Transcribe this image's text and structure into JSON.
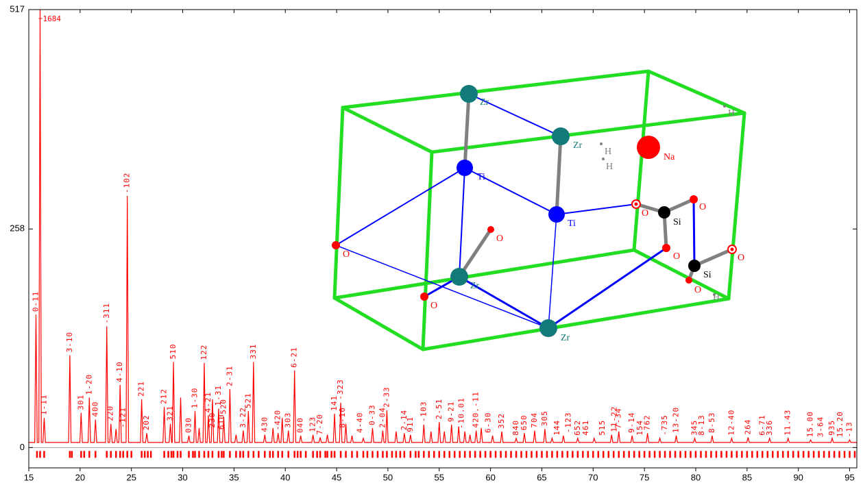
{
  "chart_data": {
    "type": "line",
    "color": "#ff0000",
    "xlim": [
      15,
      95.7
    ],
    "ylim": [
      -24,
      517
    ],
    "xticks": [
      15,
      20,
      25,
      30,
      35,
      40,
      45,
      50,
      55,
      60,
      65,
      70,
      75,
      80,
      85,
      90,
      95
    ],
    "yticks": [
      0,
      258,
      517
    ],
    "zero_line": true,
    "x": [
      15,
      15.58,
      15.7,
      15.82,
      15.98,
      16.1,
      16.22,
      16.38,
      16.5,
      16.62,
      18.88,
      19,
      19.12,
      19.98,
      20.1,
      20.22,
      20.78,
      20.9,
      21.02,
      21.38,
      21.5,
      21.62,
      22.48,
      22.6,
      22.72,
      22.88,
      23,
      23.12,
      23.38,
      23.5,
      23.62,
      23.78,
      23.9,
      24.02,
      24.48,
      24.6,
      24.72,
      25.88,
      26,
      26.12,
      26.38,
      26.5,
      26.62,
      28.08,
      28.2,
      28.32,
      28.68,
      28.8,
      28.92,
      28.98,
      29.1,
      29.22,
      29.68,
      29.8,
      29.92,
      30.48,
      30.6,
      30.72,
      31.08,
      31.2,
      31.32,
      31.48,
      31.6,
      31.72,
      31.98,
      32.1,
      32.22,
      32.38,
      32.5,
      32.62,
      32.78,
      32.9,
      33.02,
      33.38,
      33.5,
      33.62,
      33.88,
      34,
      34.12,
      34.48,
      34.6,
      34.72,
      35.08,
      35.2,
      35.32,
      35.78,
      35.9,
      36.02,
      36.28,
      36.4,
      36.52,
      36.78,
      36.9,
      37.02,
      37.88,
      38,
      38.12,
      38.68,
      38.8,
      38.92,
      39.18,
      39.3,
      39.42,
      39.58,
      39.7,
      39.82,
      40.18,
      40.3,
      40.42,
      40.78,
      40.9,
      41.02,
      41.38,
      41.5,
      41.62,
      42.58,
      42.7,
      42.82,
      43.28,
      43.4,
      43.52,
      43.98,
      44.1,
      44.22,
      44.68,
      44.8,
      44.92,
      45.28,
      45.4,
      45.52,
      45.78,
      45.9,
      46.02,
      46.38,
      46.5,
      46.62,
      47.48,
      47.6,
      47.72,
      48.38,
      48.5,
      48.62,
      49.38,
      49.5,
      49.62,
      49.78,
      49.9,
      50.02,
      50.68,
      50.8,
      50.92,
      51.48,
      51.6,
      51.72,
      52.08,
      52.2,
      52.32,
      53.38,
      53.5,
      53.62,
      54.08,
      54.2,
      54.32,
      54.88,
      55,
      55.12,
      55.38,
      55.5,
      55.62,
      56.08,
      56.2,
      56.32,
      56.78,
      56.9,
      57.02,
      57.38,
      57.5,
      57.62,
      57.88,
      58,
      58.12,
      58.48,
      58.6,
      58.72,
      58.98,
      59.1,
      59.22,
      60.08,
      60.2,
      60.32,
      60.98,
      61.1,
      61.22,
      62.38,
      62.5,
      62.62,
      63.18,
      63.3,
      63.42,
      64.18,
      64.3,
      64.42,
      65.18,
      65.3,
      65.42,
      65.88,
      66,
      66.12,
      66.98,
      67.1,
      67.22,
      68.38,
      68.5,
      68.62,
      69.98,
      70.1,
      70.22,
      71.68,
      71.8,
      71.92,
      72.38,
      72.5,
      72.62,
      73.68,
      73.8,
      73.92,
      75.18,
      75.3,
      75.42,
      76.38,
      76.5,
      76.62,
      77.98,
      78.1,
      78.22,
      79.78,
      79.9,
      80.02,
      81.48,
      81.6,
      81.72,
      83.38,
      83.5,
      83.62,
      84.98,
      85.1,
      85.22,
      87.08,
      87.2,
      87.32,
      88.88,
      89,
      89.12,
      91.08,
      91.2,
      91.32,
      93.18,
      93.3,
      93.42,
      94.88,
      95,
      95.12,
      95.7
    ],
    "values": [
      6,
      6,
      157,
      6,
      6,
      517,
      6,
      6,
      35,
      6,
      6,
      109,
      6,
      6,
      41,
      6,
      6,
      59,
      6,
      6,
      33,
      6,
      6,
      143,
      6,
      6,
      28,
      6,
      6,
      22,
      6,
      6,
      74,
      6,
      6,
      297,
      6,
      6,
      57,
      6,
      6,
      17,
      6,
      6,
      48,
      6,
      6,
      28,
      6,
      6,
      101,
      6,
      6,
      59,
      6,
      6,
      14,
      6,
      6,
      43,
      6,
      6,
      23,
      6,
      6,
      100,
      6,
      6,
      38,
      6,
      6,
      57,
      6,
      6,
      46,
      6,
      6,
      36,
      6,
      6,
      69,
      6,
      6,
      15,
      6,
      6,
      20,
      6,
      6,
      43,
      6,
      6,
      101,
      6,
      6,
      15,
      6,
      6,
      23,
      6,
      6,
      17,
      6,
      6,
      35,
      6,
      6,
      20,
      6,
      6,
      91,
      6,
      6,
      14,
      6,
      6,
      15,
      6,
      6,
      12,
      6,
      6,
      15,
      6,
      6,
      40,
      6,
      6,
      53,
      6,
      6,
      28,
      6,
      6,
      14,
      6,
      6,
      11,
      6,
      6,
      23,
      6,
      6,
      20,
      6,
      6,
      44,
      6,
      6,
      19,
      6,
      6,
      17,
      6,
      6,
      15,
      6,
      6,
      27,
      6,
      6,
      19,
      6,
      6,
      30,
      6,
      6,
      19,
      6,
      6,
      27,
      6,
      6,
      25,
      6,
      6,
      19,
      6,
      6,
      15,
      6,
      6,
      20,
      6,
      6,
      23,
      6,
      6,
      14,
      6,
      6,
      19,
      6,
      6,
      11,
      6,
      6,
      17,
      6,
      6,
      20,
      6,
      6,
      22,
      6,
      6,
      11,
      6,
      6,
      14,
      6,
      6,
      11,
      6,
      6,
      11,
      6,
      6,
      15,
      6,
      6,
      19,
      6,
      6,
      14,
      6,
      6,
      17,
      6,
      6,
      11,
      6,
      6,
      14,
      6,
      6,
      11,
      6,
      6,
      14,
      6,
      6,
      11,
      6,
      6,
      12,
      6,
      6,
      11,
      6,
      6,
      11,
      6,
      6,
      9,
      6,
      6,
      11,
      6,
      6,
      9,
      6,
      6
    ],
    "reflections": [
      15.8,
      16.1,
      16.5,
      19.0,
      19.2,
      20.1,
      20.4,
      20.9,
      21.5,
      22.6,
      23.0,
      23.5,
      23.9,
      24.2,
      24.6,
      25.0,
      26.0,
      26.3,
      26.6,
      26.9,
      28.2,
      28.6,
      28.9,
      29.1,
      29.5,
      29.8,
      30.6,
      31.0,
      31.2,
      31.6,
      32.1,
      32.5,
      32.9,
      33.5,
      33.8,
      34.0,
      34.6,
      35.2,
      35.6,
      35.9,
      36.4,
      36.9,
      37.4,
      38.0,
      38.5,
      38.8,
      39.3,
      39.7,
      40.3,
      40.9,
      41.2,
      41.5,
      42.0,
      42.7,
      43.1,
      43.4,
      43.9,
      44.1,
      44.5,
      44.8,
      45.4,
      45.9,
      46.5,
      47.0,
      47.6,
      48.0,
      48.5,
      49.0,
      49.5,
      49.9,
      50.4,
      50.8,
      51.2,
      51.6,
      52.2,
      52.7,
      53,
      53.5,
      54,
      54.5,
      55,
      55.5,
      56,
      56.5,
      57,
      57.5,
      58,
      58.5,
      59,
      59.5,
      60,
      60.5,
      61,
      61.5,
      62,
      62.5,
      63,
      63.5,
      64,
      64.5,
      65,
      65.5,
      66,
      66.5,
      67,
      67.5,
      68,
      68.5,
      69,
      69.5,
      70,
      70.5,
      71,
      71.5,
      72,
      72.5,
      73,
      73.5,
      74,
      74.5,
      75,
      75.5,
      76,
      76.5,
      77,
      77.5,
      78,
      78.5,
      79,
      79.5,
      80,
      80.5,
      81,
      81.5,
      82,
      82.5,
      83,
      83.5,
      84,
      84.5,
      85,
      85.5,
      86,
      86.5,
      87,
      87.5,
      88,
      88.5,
      89,
      89.5,
      90,
      90.5,
      91,
      91.5,
      92,
      92.5,
      93,
      93.5,
      94,
      94.5,
      95,
      95.5
    ],
    "top_label": {
      "text": "1684",
      "x": 16.1,
      "y": 517
    },
    "annotations": [
      {
        "text": "0-11",
        "x": 15.7,
        "y": 157
      },
      {
        "text": "1-11",
        "x": 16.5,
        "y": 35
      },
      {
        "text": "3-10",
        "x": 19.0,
        "y": 109
      },
      {
        "text": "301",
        "x": 20.1,
        "y": 41
      },
      {
        "text": "1-20",
        "x": 20.9,
        "y": 59
      },
      {
        "text": "400",
        "x": 21.5,
        "y": 33
      },
      {
        "text": "-311",
        "x": 22.6,
        "y": 143
      },
      {
        "text": "220",
        "x": 23.0,
        "y": 28
      },
      {
        "text": "4-10",
        "x": 23.9,
        "y": 74
      },
      {
        "text": "-121",
        "x": 24.2,
        "y": 20
      },
      {
        "text": "-102",
        "x": 24.6,
        "y": 297
      },
      {
        "text": "221",
        "x": 26.0,
        "y": 57
      },
      {
        "text": "202",
        "x": 26.5,
        "y": 17
      },
      {
        "text": "212",
        "x": 28.2,
        "y": 48
      },
      {
        "text": "321",
        "x": 28.8,
        "y": 28
      },
      {
        "text": "510",
        "x": 29.1,
        "y": 101
      },
      {
        "text": "030",
        "x": 30.6,
        "y": 14
      },
      {
        "text": "1-30",
        "x": 31.2,
        "y": 43
      },
      {
        "text": "122",
        "x": 32.1,
        "y": 100
      },
      {
        "text": "4-21",
        "x": 32.5,
        "y": 38
      },
      {
        "text": "230",
        "x": 32.9,
        "y": 20
      },
      {
        "text": "1-31",
        "x": 33.5,
        "y": 46
      },
      {
        "text": "610",
        "x": 33.8,
        "y": 18
      },
      {
        "text": "520",
        "x": 34.0,
        "y": 36
      },
      {
        "text": "2-31",
        "x": 34.6,
        "y": 69
      },
      {
        "text": "3-22",
        "x": 35.9,
        "y": 20
      },
      {
        "text": "521",
        "x": 36.4,
        "y": 43
      },
      {
        "text": "331",
        "x": 36.9,
        "y": 101
      },
      {
        "text": "430",
        "x": 38.0,
        "y": 15
      },
      {
        "text": "-420",
        "x": 39.3,
        "y": 17
      },
      {
        "text": "303",
        "x": 40.3,
        "y": 20
      },
      {
        "text": "6-21",
        "x": 40.9,
        "y": 91
      },
      {
        "text": "040",
        "x": 41.5,
        "y": 14
      },
      {
        "text": "123",
        "x": 42.7,
        "y": 15
      },
      {
        "text": "7-20",
        "x": 43.4,
        "y": 12
      },
      {
        "text": "141",
        "x": 44.8,
        "y": 40
      },
      {
        "text": "-323",
        "x": 45.4,
        "y": 53
      },
      {
        "text": "8-10",
        "x": 45.6,
        "y": 20
      },
      {
        "text": "4-40",
        "x": 47.3,
        "y": 14
      },
      {
        "text": "0-33",
        "x": 48.5,
        "y": 23
      },
      {
        "text": "2-04",
        "x": 49.5,
        "y": 20
      },
      {
        "text": "2-33",
        "x": 49.9,
        "y": 44
      },
      {
        "text": "2-14",
        "x": 51.6,
        "y": 17
      },
      {
        "text": "911",
        "x": 52.2,
        "y": 15
      },
      {
        "text": "-103",
        "x": 53.5,
        "y": 27
      },
      {
        "text": "2-51",
        "x": 55.0,
        "y": 30
      },
      {
        "text": "9-21",
        "x": 56.2,
        "y": 27
      },
      {
        "text": "-10.01",
        "x": 57.2,
        "y": 19
      },
      {
        "text": "420.-11",
        "x": 58.6,
        "y": 20
      },
      {
        "text": "6-30",
        "x": 59.8,
        "y": 14
      },
      {
        "text": "352",
        "x": 61.1,
        "y": 19
      },
      {
        "text": "840",
        "x": 62.5,
        "y": 11
      },
      {
        "text": "650",
        "x": 63.3,
        "y": 17
      },
      {
        "text": "704",
        "x": 64.3,
        "y": 20
      },
      {
        "text": "305",
        "x": 65.3,
        "y": 22
      },
      {
        "text": "144",
        "x": 66.5,
        "y": 11
      },
      {
        "text": "-123",
        "x": 67.6,
        "y": 14
      },
      {
        "text": "652",
        "x": 68.5,
        "y": 11
      },
      {
        "text": "461",
        "x": 69.3,
        "y": 11
      },
      {
        "text": "515",
        "x": 70.9,
        "y": 11
      },
      {
        "text": "11-22",
        "x": 72.1,
        "y": 15
      },
      {
        "text": "7-34",
        "x": 72.5,
        "y": 19
      },
      {
        "text": "9-14",
        "x": 73.8,
        "y": 14
      },
      {
        "text": "154",
        "x": 74.6,
        "y": 11
      },
      {
        "text": "762",
        "x": 75.3,
        "y": 17
      },
      {
        "text": "-735",
        "x": 77.0,
        "y": 11
      },
      {
        "text": "13-20",
        "x": 78.1,
        "y": 14
      },
      {
        "text": "345",
        "x": 79.9,
        "y": 11
      },
      {
        "text": "8-13",
        "x": 80.6,
        "y": 11
      },
      {
        "text": "8-53",
        "x": 81.6,
        "y": 14
      },
      {
        "text": "12-40",
        "x": 83.5,
        "y": 11
      },
      {
        "text": "264",
        "x": 85.1,
        "y": 12
      },
      {
        "text": "6-71",
        "x": 86.5,
        "y": 11
      },
      {
        "text": "336",
        "x": 87.2,
        "y": 11
      },
      {
        "text": "11.43",
        "x": 89.0,
        "y": 11
      },
      {
        "text": "15.00",
        "x": 91.2,
        "y": 9
      },
      {
        "text": "3-64",
        "x": 92.2,
        "y": 9
      },
      {
        "text": "935",
        "x": 93.3,
        "y": 11
      },
      {
        "text": "15.20",
        "x": 94.1,
        "y": 9
      },
      {
        "text": "-13",
        "x": 95.0,
        "y": 9
      }
    ]
  },
  "structure": {
    "cell_color": "#22dd22",
    "atoms": [
      {
        "label": "Zr",
        "color": "#137a7a"
      },
      {
        "label": "Zr",
        "color": "#137a7a"
      },
      {
        "label": "Ti",
        "color": "#0000ff"
      },
      {
        "label": "Ti",
        "color": "#0000ff"
      },
      {
        "label": "Zr",
        "color": "#137a7a"
      },
      {
        "label": "Zr",
        "color": "#137a7a"
      },
      {
        "label": "Na",
        "color": "#ff0000"
      },
      {
        "label": "O",
        "color": "#ff0000"
      },
      {
        "label": "O",
        "color": "#ff0000"
      },
      {
        "label": "O",
        "color": "#ff0000"
      },
      {
        "label": "O",
        "color": "#ff0000"
      },
      {
        "label": "O",
        "color": "#ff0000"
      },
      {
        "label": "O",
        "color": "#ff0000"
      },
      {
        "label": "O",
        "color": "#ff0000"
      },
      {
        "label": "O",
        "color": "#ff0000"
      },
      {
        "label": "Si",
        "color": "#000000"
      },
      {
        "label": "Si",
        "color": "#000000"
      },
      {
        "label": "H",
        "color": "#808080"
      },
      {
        "label": "H",
        "color": "#808080"
      },
      {
        "label": "H",
        "color": "#808080"
      },
      {
        "label": "H",
        "color": "#808080"
      }
    ]
  }
}
